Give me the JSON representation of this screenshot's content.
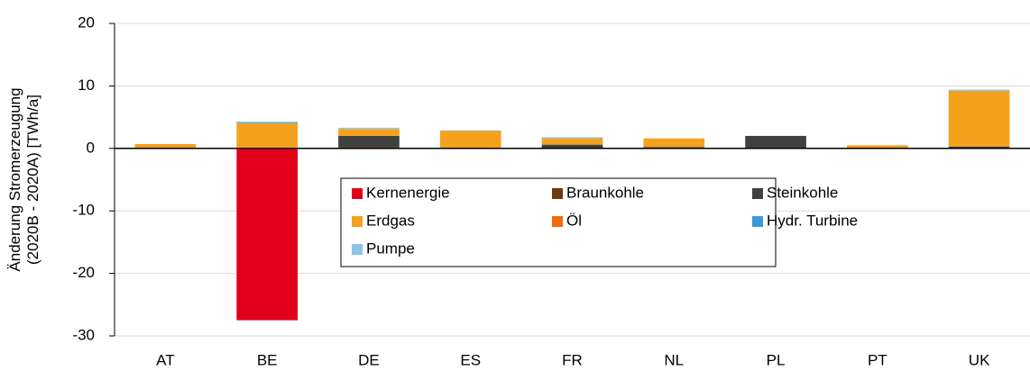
{
  "chart_data": {
    "type": "stacked_bar",
    "y_label": [
      "Änderung Stromerzeugung",
      "(2020B - 2020A) [TWh/a]"
    ],
    "categories": [
      "AT",
      "BE",
      "DE",
      "ES",
      "FR",
      "NL",
      "PL",
      "PT",
      "UK"
    ],
    "series": [
      {
        "name": "Kernenergie",
        "color": "#e2001a",
        "values": [
          0,
          -27.5,
          0,
          0,
          0,
          0,
          0,
          0,
          0
        ]
      },
      {
        "name": "Braunkohle",
        "color": "#6b3a10",
        "values": [
          0,
          0,
          0.2,
          0,
          0,
          0,
          0,
          0,
          0
        ]
      },
      {
        "name": "Steinkohle",
        "color": "#404040",
        "values": [
          0,
          0,
          1.8,
          0,
          0.6,
          0.2,
          2.0,
          0,
          0.3
        ]
      },
      {
        "name": "Erdgas",
        "color": "#f4a11d",
        "values": [
          0.7,
          4.0,
          1.1,
          2.8,
          1.0,
          1.4,
          0,
          0.5,
          8.9
        ]
      },
      {
        "name": "Öl",
        "color": "#f26b0f",
        "values": [
          0,
          0,
          0,
          0,
          0,
          0,
          0,
          0,
          0
        ]
      },
      {
        "name": "Hydr. Turbine",
        "color": "#3d9ad9",
        "values": [
          0,
          0.1,
          0,
          0,
          0,
          0,
          0,
          0,
          0
        ]
      },
      {
        "name": "Pumpe",
        "color": "#8ec3e8",
        "values": [
          0,
          0.2,
          0.2,
          0.1,
          0.2,
          0,
          0,
          0,
          0.2
        ]
      }
    ],
    "ylim": [
      -30,
      20
    ],
    "yticks": [
      -30,
      -20,
      -10,
      0,
      10,
      20
    ],
    "grid": true,
    "legend": "center"
  }
}
